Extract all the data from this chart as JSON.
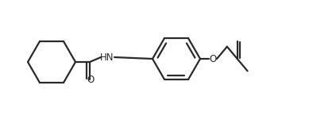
{
  "line_color": "#2a2a2a",
  "line_width": 1.6,
  "bg_color": "#ffffff",
  "fig_width": 3.89,
  "fig_height": 1.51,
  "dpi": 100,
  "hn_label": "HN",
  "o_amide_label": "O",
  "o_ether_label": "O",
  "font_size": 8.5,
  "font_family": "DejaVu Sans"
}
